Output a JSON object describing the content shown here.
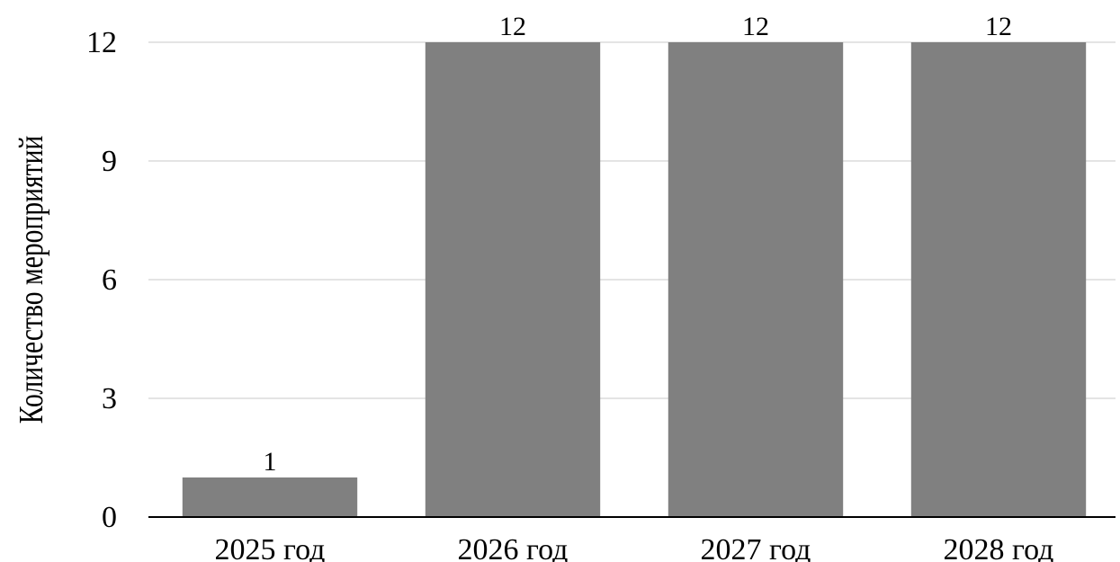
{
  "chart_data": {
    "type": "bar",
    "title": "",
    "xlabel": "",
    "ylabel": "Количество мероприятий",
    "categories": [
      "2025 год",
      "2026 год",
      "2027 год",
      "2028 год"
    ],
    "values": [
      1,
      12,
      12,
      12
    ],
    "data_labels": [
      "1",
      "12",
      "12",
      "12"
    ],
    "ylim": [
      0,
      12
    ],
    "yticks": [
      0,
      3,
      6,
      9,
      12
    ],
    "ytick_labels": [
      "0",
      "3",
      "6",
      "9",
      "12"
    ],
    "grid": true,
    "legend": "none",
    "colors": {
      "bar": "#808080",
      "gridline": "#c8c8c8",
      "axis": "#000000",
      "text": "#000000"
    }
  }
}
